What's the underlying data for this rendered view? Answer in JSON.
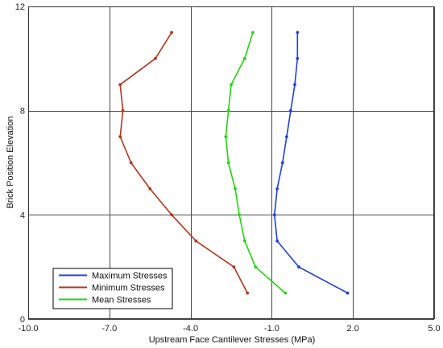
{
  "chart_data": {
    "type": "line",
    "title": "",
    "xlabel": "Upstream Face Cantilever Stresses (MPa)",
    "ylabel": "Brick Position Elevation",
    "xlim": [
      -10.0,
      5.0
    ],
    "ylim": [
      0,
      12
    ],
    "x_ticks": [
      "-10.0",
      "-7.0",
      "-4.0",
      "-1.0",
      "2.0",
      "5.0"
    ],
    "y_ticks": [
      "0",
      "4",
      "8",
      "12"
    ],
    "grid": true,
    "legend_position": "bottom-left",
    "series": [
      {
        "name": "Maximum Stresses",
        "color": "#1f3fe0",
        "points": [
          [
            1.8,
            1
          ],
          [
            0.0,
            2
          ],
          [
            -0.8,
            3
          ],
          [
            -0.9,
            4
          ],
          [
            -0.8,
            5
          ],
          [
            -0.6,
            6
          ],
          [
            -0.45,
            7
          ],
          [
            -0.3,
            8
          ],
          [
            -0.15,
            9
          ],
          [
            -0.05,
            10
          ],
          [
            -0.05,
            11
          ]
        ]
      },
      {
        "name": "Minimum Stresses",
        "color": "#b4351c",
        "points": [
          [
            -1.9,
            1
          ],
          [
            -2.4,
            2
          ],
          [
            -3.8,
            3
          ],
          [
            -4.7,
            4
          ],
          [
            -5.5,
            5
          ],
          [
            -6.2,
            6
          ],
          [
            -6.6,
            7
          ],
          [
            -6.5,
            8
          ],
          [
            -6.6,
            9
          ],
          [
            -5.3,
            10
          ],
          [
            -4.7,
            11
          ]
        ]
      },
      {
        "name": "Mean Stresses",
        "color": "#22d60e",
        "points": [
          [
            -0.5,
            1
          ],
          [
            -1.6,
            2
          ],
          [
            -2.0,
            3
          ],
          [
            -2.2,
            4
          ],
          [
            -2.35,
            5
          ],
          [
            -2.6,
            6
          ],
          [
            -2.7,
            7
          ],
          [
            -2.6,
            8
          ],
          [
            -2.5,
            9
          ],
          [
            -2.0,
            10
          ],
          [
            -1.7,
            11
          ]
        ]
      }
    ]
  }
}
